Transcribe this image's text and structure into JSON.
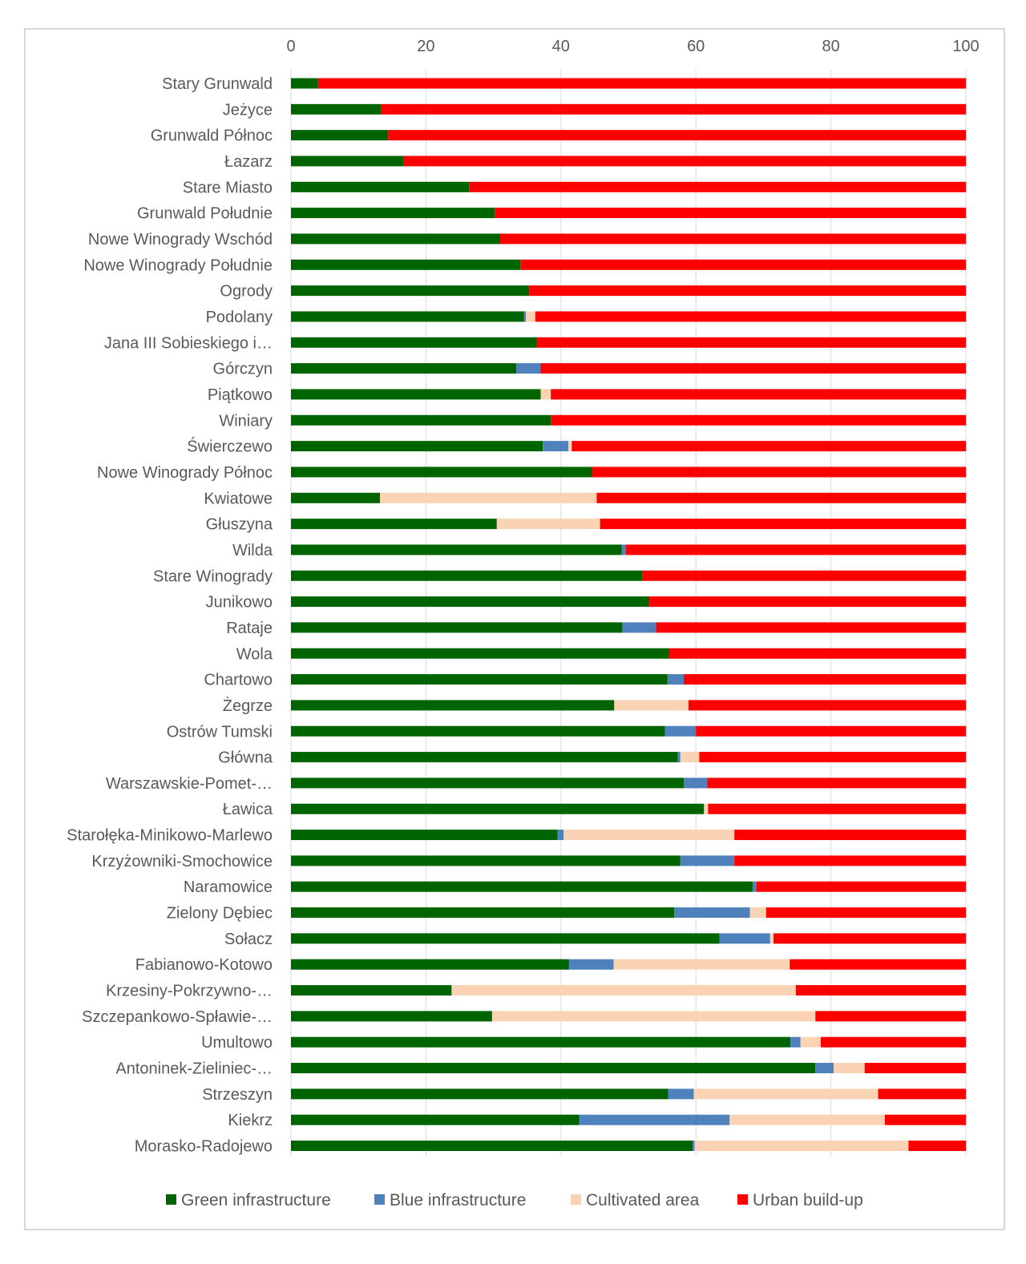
{
  "chart_data": {
    "type": "bar",
    "orientation": "horizontal",
    "stacked": true,
    "xlim": [
      0,
      100
    ],
    "xticks": [
      0,
      20,
      40,
      60,
      80,
      100
    ],
    "x_axis_position": "top",
    "grid": true,
    "legend_position": "bottom",
    "categories": [
      "Stary Grunwald",
      "Jeżyce",
      "Grunwald Północ",
      "Łazarz",
      "Stare Miasto",
      "Grunwald Południe",
      "Nowe Winogrady Wschód",
      "Nowe Winogrady Południe",
      "Ogrody",
      "Podolany",
      "Jana III Sobieskiego i…",
      "Górczyn",
      "Piątkowo",
      "Winiary",
      "Świerczewo",
      "Nowe Winogrady Północ",
      "Kwiatowe",
      "Głuszyna",
      "Wilda",
      "Stare Winogrady",
      "Junikowo",
      "Rataje",
      "Wola",
      "Chartowo",
      "Żegrze",
      "Ostrów Tumski",
      "Główna",
      "Warszawskie-Pomet-…",
      "Ławica",
      "Starołęka-Minikowo-Marlewo",
      "Krzyżowniki-Smochowice",
      "Naramowice",
      "Zielony Dębiec",
      "Sołacz",
      "Fabianowo-Kotowo",
      "Krzesiny-Pokrzywno-…",
      "Szczepankowo-Spławie-…",
      "Umultowo",
      "Antoninek-Zieliniec-…",
      "Strzeszyn",
      "Kiekrz",
      "Morasko-Radojewo"
    ],
    "series": [
      {
        "name": "Green infrastructure",
        "color": "#006400",
        "values": [
          4,
          13.3,
          14.4,
          16.7,
          26.4,
          30.2,
          31,
          34,
          35.3,
          34.5,
          36.4,
          33.4,
          37,
          38.5,
          37.3,
          44.6,
          13.2,
          30.5,
          49,
          52.1,
          53.1,
          49.1,
          56,
          55.8,
          47.9,
          55.4,
          57.3,
          58.2,
          61.2,
          39.5,
          57.7,
          68.4,
          56.8,
          63.5,
          41.2,
          23.8,
          29.8,
          74,
          77.7,
          55.9,
          42.7,
          59.5
        ]
      },
      {
        "name": "Blue infrastructure",
        "color": "#4f81bd",
        "values": [
          0,
          0,
          0,
          0,
          0,
          0,
          0,
          0,
          0,
          0.3,
          0,
          3.6,
          0,
          0,
          3.8,
          0,
          0,
          0,
          0.6,
          0,
          0,
          5,
          0,
          2.4,
          0,
          4.6,
          0.4,
          3.5,
          0,
          0.9,
          8,
          0.6,
          11.2,
          7.5,
          6.6,
          0,
          0,
          1.5,
          2.7,
          3.8,
          22.3,
          0.3
        ]
      },
      {
        "name": "Cultivated area",
        "color": "#fad3b5",
        "values": [
          0,
          0,
          0,
          0,
          0,
          0,
          0,
          0,
          0,
          1.4,
          0,
          0,
          1.5,
          0,
          0.5,
          0,
          32.1,
          15.3,
          0,
          0,
          0,
          0,
          0,
          0,
          11,
          0,
          2.8,
          0,
          0.6,
          25.3,
          0,
          0,
          2.4,
          0.5,
          26.1,
          51,
          47.9,
          3,
          4.6,
          27.3,
          23,
          31.7
        ]
      },
      {
        "name": "Urban build-up",
        "color": "#ff0000",
        "values": [
          96,
          86.7,
          85.6,
          83.3,
          73.6,
          69.8,
          69,
          66,
          64.7,
          63.8,
          63.6,
          63,
          61.5,
          61.5,
          58.4,
          55.4,
          54.7,
          54.2,
          50.4,
          47.9,
          46.9,
          45.9,
          44,
          41.8,
          41.1,
          40,
          39.5,
          38.3,
          38.2,
          34.3,
          34.3,
          31,
          29.6,
          28.5,
          26.1,
          25.2,
          22.3,
          21.5,
          15,
          13,
          12,
          8.5
        ]
      }
    ]
  }
}
